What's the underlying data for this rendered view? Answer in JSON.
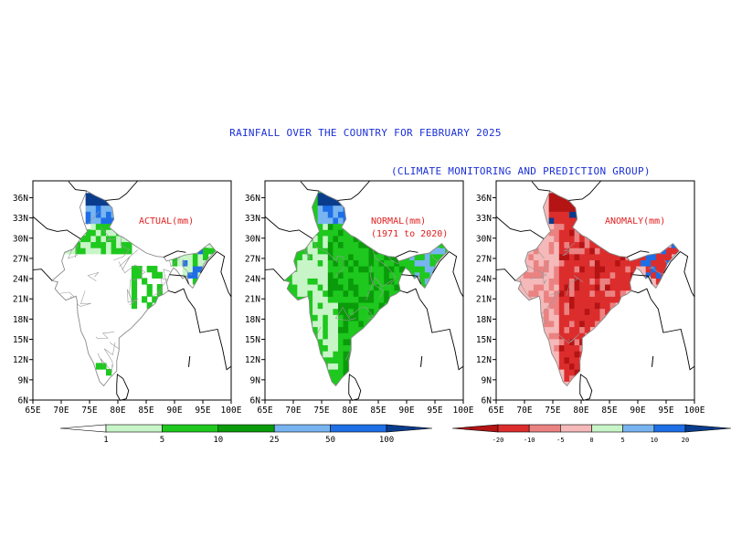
{
  "figure": {
    "title": "RAINFALL OVER THE COUNTRY FOR FEBRUARY 2025",
    "subtitle": "(CLIMATE MONITORING AND PREDICTION GROUP)"
  },
  "axes": {
    "x_ticks": [
      "65E",
      "70E",
      "75E",
      "80E",
      "85E",
      "90E",
      "95E",
      "100E"
    ],
    "y_ticks": [
      "36N",
      "33N",
      "30N",
      "27N",
      "24N",
      "21N",
      "18N",
      "15N",
      "12N",
      "9N",
      "6N"
    ]
  },
  "panels": [
    {
      "id": "actual",
      "label_lines": [
        "ACTUAL(mm)"
      ]
    },
    {
      "id": "normal",
      "label_lines": [
        "NORMAL(mm)",
        "(1971 to 2020)"
      ]
    },
    {
      "id": "anomaly",
      "label_lines": [
        "ANOMALY(mm)"
      ]
    }
  ],
  "colorbars": {
    "rainfall": {
      "tick_labels": [
        "1",
        "5",
        "10",
        "25",
        "50",
        "100"
      ],
      "colors": [
        "#ffffff",
        "#c8f5c8",
        "#1ec81e",
        "#0a9b0a",
        "#78b4f0",
        "#1e6ee6",
        "#0a3c8c"
      ]
    },
    "anomaly": {
      "tick_labels": [
        "-20",
        "-10",
        "-5",
        "0",
        "5",
        "10",
        "20"
      ],
      "colors": [
        "#b41414",
        "#dc2d2d",
        "#eb8282",
        "#f5b9b9",
        "#c8f5c8",
        "#78b4f0",
        "#1e6ee6",
        "#0a3c8c"
      ]
    }
  },
  "colors": {
    "title": "#1a2fd6",
    "panel_label": "#e02020"
  }
}
